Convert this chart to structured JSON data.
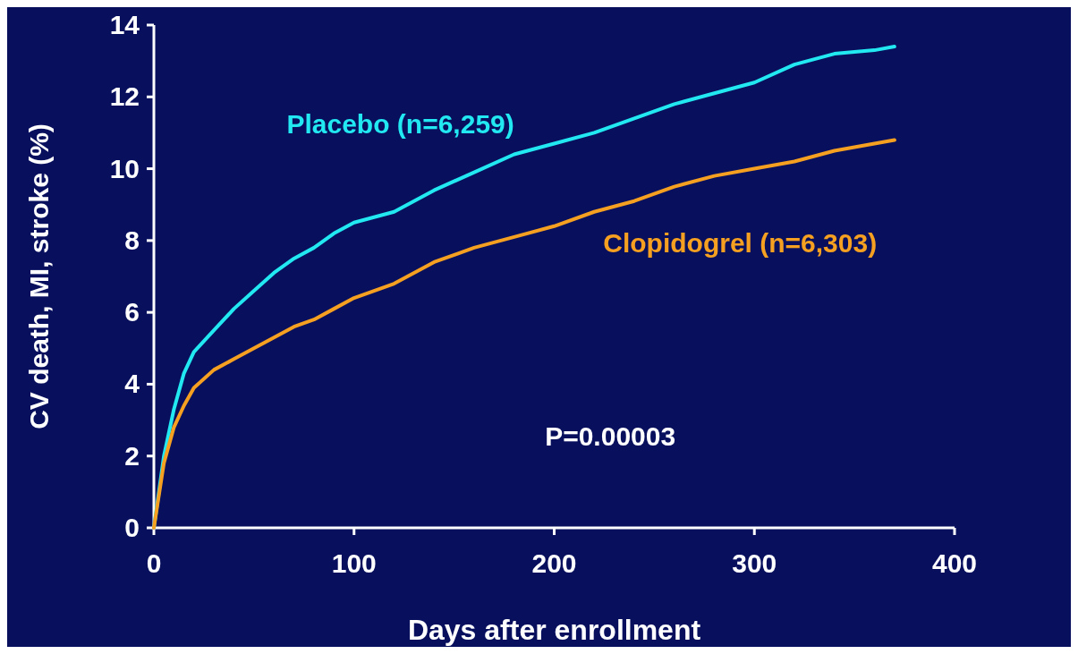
{
  "chart_data": {
    "type": "line",
    "xlabel": "Days after enrollment",
    "ylabel": "CV death, MI, stroke (%)",
    "x": [
      0,
      5,
      10,
      15,
      20,
      30,
      40,
      50,
      60,
      70,
      80,
      90,
      100,
      120,
      140,
      160,
      180,
      200,
      220,
      240,
      260,
      280,
      300,
      320,
      340,
      360,
      370
    ],
    "series": [
      {
        "name": "Placebo (n=6,259)",
        "color": "#22e8f2",
        "values": [
          0,
          2.0,
          3.3,
          4.3,
          4.9,
          5.5,
          6.1,
          6.6,
          7.1,
          7.5,
          7.8,
          8.2,
          8.5,
          8.8,
          9.4,
          9.9,
          10.4,
          10.7,
          11.0,
          11.4,
          11.8,
          12.1,
          12.4,
          12.9,
          13.2,
          13.3,
          13.4
        ]
      },
      {
        "name": "Clopidogrel (n=6,303)",
        "color": "#f5a020",
        "values": [
          0,
          1.8,
          2.8,
          3.4,
          3.9,
          4.4,
          4.7,
          5.0,
          5.3,
          5.6,
          5.8,
          6.1,
          6.4,
          6.8,
          7.4,
          7.8,
          8.1,
          8.4,
          8.8,
          9.1,
          9.5,
          9.8,
          10.0,
          10.2,
          10.5,
          10.7,
          10.8
        ]
      }
    ],
    "xlim": [
      0,
      400
    ],
    "xticks": [
      0,
      100,
      200,
      300,
      400
    ],
    "ylim": [
      0,
      14
    ],
    "yticks": [
      0,
      2,
      4,
      6,
      8,
      10,
      12,
      14
    ],
    "grid": false,
    "marker": "none",
    "line_style": "solid",
    "annotations": [
      "P=0.00003"
    ]
  }
}
